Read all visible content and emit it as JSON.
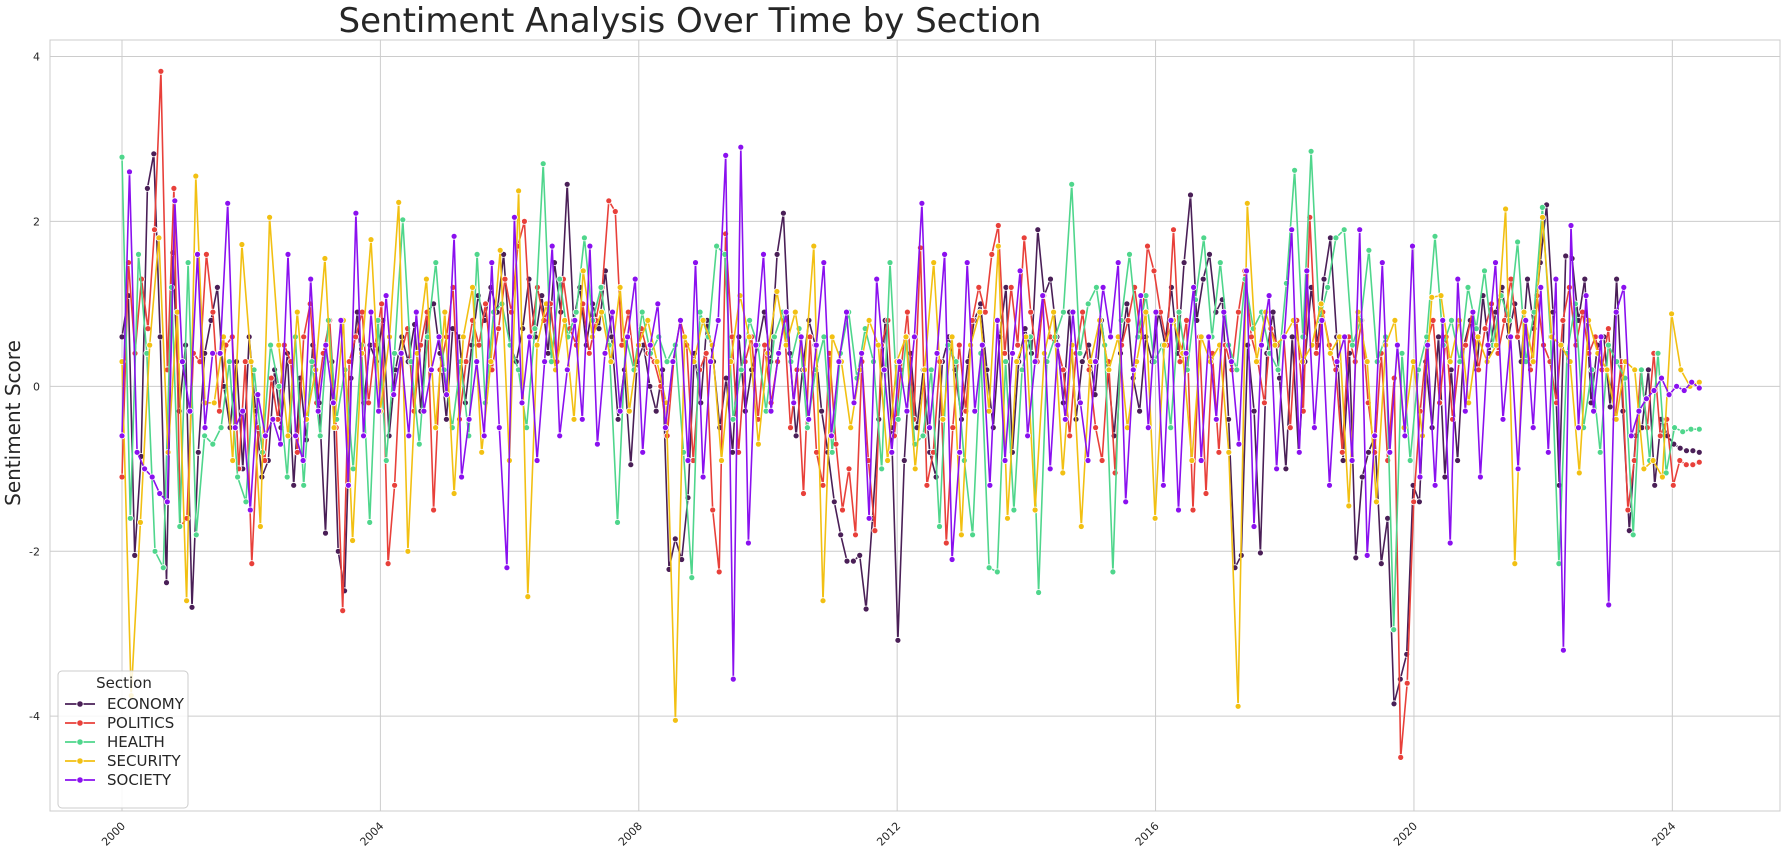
{
  "chart_data": {
    "type": "line",
    "title": "Sentiment Analysis Over Time by Section",
    "xlabel": "",
    "ylabel": "Sentiment Score",
    "x_ticks": [
      "2000",
      "2004",
      "2008",
      "2012",
      "2016",
      "2020",
      "2024"
    ],
    "y_ticks": [
      "-4",
      "-2",
      "0",
      "2",
      "4"
    ],
    "xlim": [
      "1998-11-20",
      "2025-09-01"
    ],
    "ylim": [
      -5.15,
      4.2
    ],
    "grid": true,
    "legend": {
      "title": "Section",
      "placement": "lower-left"
    },
    "x_start": "2000-01",
    "x_end": "2024-06",
    "x_step": "1 month",
    "series": [
      {
        "name": "ECONOMY",
        "color": "#4a1f57",
        "values": [
          0.6,
          1.1,
          -2.05,
          -0.85,
          2.4,
          2.82,
          0.6,
          -2.38,
          1.62,
          -0.3,
          0.5,
          -2.68,
          -0.8,
          0.4,
          0.8,
          1.2,
          0.0,
          -0.5,
          0.3,
          -1.0,
          0.6,
          -0.3,
          -1.1,
          -0.9,
          0.2,
          -0.5,
          0.4,
          -1.2,
          0.1,
          -0.65,
          0.5,
          -0.2,
          -1.78,
          0.3,
          -2.0,
          -2.48,
          0.1,
          0.9,
          -0.2,
          0.5,
          0.3,
          0.8,
          -0.6,
          0.2,
          0.6,
          0.3,
          0.75,
          -0.3,
          0.9,
          1.0,
          0.4,
          -0.4,
          0.7,
          0.6,
          -0.2,
          0.5,
          1.1,
          0.8,
          1.2,
          0.9,
          1.6,
          0.5,
          0.3,
          0.7,
          1.3,
          0.6,
          1.1,
          0.4,
          1.5,
          0.9,
          2.45,
          0.8,
          1.2,
          0.5,
          1.0,
          0.7,
          1.4,
          0.6,
          -0.4,
          0.2,
          -0.95,
          0.3,
          0.5,
          0.0,
          -0.3,
          0.2,
          -2.22,
          -1.85,
          -2.1,
          -1.35,
          0.4,
          -0.2,
          0.8,
          0.3,
          -0.5,
          0.1,
          -0.8,
          0.6,
          -0.3,
          0.2,
          0.5,
          0.9,
          0.3,
          1.6,
          2.1,
          0.4,
          -0.6,
          0.2,
          0.8,
          0.5,
          -0.3,
          -0.8,
          -1.4,
          -1.8,
          -2.12,
          -2.12,
          -2.05,
          -2.7,
          -1.6,
          -0.4,
          0.8,
          -0.5,
          -3.08,
          -0.9,
          0.4,
          -0.5,
          0.2,
          -0.8,
          -1.1,
          0.3,
          0.6,
          0.2,
          -0.4,
          0.3,
          0.8,
          1.0,
          0.2,
          -0.5,
          0.6,
          1.2,
          -0.8,
          0.3,
          0.7,
          0.4,
          1.9,
          1.1,
          1.3,
          0.6,
          -0.2,
          0.9,
          -0.4,
          0.3,
          0.5,
          -0.1,
          0.8,
          0.2,
          -0.6,
          0.4,
          1.0,
          0.1,
          -0.3,
          0.6,
          0.3,
          0.9,
          0.5,
          1.2,
          0.4,
          1.5,
          2.32,
          0.8,
          1.3,
          1.6,
          0.9,
          1.05,
          -0.4,
          -2.2,
          -2.05,
          0.5,
          -0.3,
          -2.02,
          0.4,
          0.9,
          0.1,
          -1.0,
          0.6,
          -0.8,
          0.3,
          1.2,
          0.5,
          1.3,
          1.8,
          0.6,
          -0.9,
          0.4,
          -2.08,
          -1.1,
          -0.8,
          -0.6,
          -2.15,
          -1.6,
          -3.85,
          -3.55,
          -3.25,
          -1.2,
          -1.4,
          0.3,
          -0.5,
          0.6,
          -1.1,
          0.2,
          -0.9,
          0.5,
          0.8,
          0.2,
          1.1,
          0.4,
          0.9,
          1.2,
          0.6,
          1.0,
          0.3,
          1.3,
          0.7,
          1.5,
          2.2,
          0.9,
          -1.2,
          1.58,
          1.55,
          0.8,
          1.3,
          -0.2,
          0.5,
          0.6,
          -0.25,
          1.3,
          -0.3,
          -1.75,
          -0.6,
          -0.5,
          0.2,
          -1.2,
          -0.4,
          -0.6,
          -0.7,
          -0.75,
          -0.78,
          -0.78,
          -0.8
        ]
      },
      {
        "name": "POLITICS",
        "color": "#e8403a",
        "values": [
          -1.1,
          1.5,
          0.4,
          1.3,
          0.7,
          1.9,
          3.82,
          0.2,
          2.4,
          -1.7,
          -1.6,
          0.4,
          0.3,
          1.6,
          0.9,
          -0.3,
          0.5,
          0.6,
          -1.0,
          0.3,
          -2.15,
          -0.5,
          -0.9,
          0.1,
          -0.4,
          0.5,
          0.3,
          -0.8,
          0.6,
          1.0,
          -0.2,
          0.4,
          0.8,
          -0.5,
          -2.72,
          0.3,
          0.6,
          0.9,
          -0.2,
          0.5,
          1.0,
          -2.15,
          -1.2,
          0.4,
          0.7,
          -0.3,
          0.5,
          0.9,
          -1.5,
          0.2,
          0.6,
          1.2,
          -0.4,
          0.3,
          0.8,
          0.5,
          1.0,
          0.2,
          0.7,
          1.3,
          0.9,
          1.7,
          2.0,
          0.6,
          1.2,
          0.8,
          1.0,
          0.3,
          1.3,
          0.7,
          0.5,
          1.0,
          0.4,
          0.8,
          1.2,
          2.25,
          2.12,
          0.5,
          0.9,
          0.2,
          0.7,
          0.4,
          0.3,
          0.0,
          -0.6,
          0.3,
          0.8,
          0.5,
          -0.9,
          0.2,
          0.4,
          -1.5,
          -2.25,
          1.85,
          0.6,
          -0.8,
          0.3,
          0.6,
          -0.4,
          0.5,
          -0.2,
          0.3,
          0.8,
          -0.5,
          0.2,
          -1.3,
          0.6,
          -0.8,
          -1.2,
          0.4,
          -0.7,
          -1.5,
          -1.0,
          -1.8,
          0.3,
          -0.9,
          -1.75,
          0.5,
          0.8,
          -0.6,
          0.2,
          0.9,
          -0.4,
          1.68,
          -1.2,
          -0.8,
          0.3,
          -1.9,
          -0.5,
          0.5,
          -0.3,
          0.8,
          1.2,
          0.9,
          1.6,
          1.95,
          0.4,
          1.2,
          0.5,
          1.8,
          0.9,
          0.3,
          1.1,
          0.6,
          0.5,
          0.2,
          -0.6,
          0.4,
          0.9,
          0.2,
          -0.5,
          -0.9,
          0.3,
          -1.05,
          0.5,
          0.8,
          1.2,
          0.6,
          1.7,
          1.4,
          0.9,
          0.5,
          1.9,
          0.3,
          0.8,
          -1.5,
          0.6,
          -1.3,
          0.4,
          -0.8,
          0.5,
          0.2,
          0.9,
          1.4,
          0.6,
          0.3,
          -0.2,
          0.7,
          0.5,
          0.6,
          -0.5,
          0.8,
          -0.3,
          2.05,
          0.4,
          0.9,
          0.5,
          0.2,
          -0.8,
          0.6,
          0.3,
          0.8,
          -0.2,
          -0.8,
          0.4,
          -0.9,
          0.1,
          -4.5,
          -3.6,
          -1.4,
          -0.3,
          0.5,
          0.8,
          -0.2,
          0.6,
          -0.4,
          0.3,
          0.5,
          0.9,
          0.2,
          0.7,
          1.0,
          0.4,
          0.8,
          1.3,
          0.6,
          0.9,
          0.2,
          1.1,
          0.5,
          0.3,
          -0.2,
          0.8,
          1.2,
          0.5,
          0.9,
          0.4,
          0.6,
          0.2,
          0.7,
          -0.4,
          0.3,
          -1.5,
          -0.9,
          0.2,
          -0.5,
          0.4,
          -0.6,
          -0.4,
          -1.2,
          -0.9,
          -0.95,
          -0.95,
          -0.92
        ]
      },
      {
        "name": "HEALTH",
        "color": "#4fd68c",
        "values": [
          2.78,
          -1.6,
          1.6,
          0.4,
          -2.0,
          -2.2,
          1.2,
          -1.7,
          1.5,
          -1.8,
          -0.6,
          -0.7,
          -0.5,
          0.3,
          -1.1,
          -1.4,
          0.2,
          -0.8,
          0.5,
          0.0,
          -1.1,
          0.6,
          -1.2,
          0.3,
          -0.6,
          0.8,
          -0.4,
          0.2,
          -1.0,
          0.5,
          -1.65,
          0.8,
          -0.9,
          0.4,
          2.02,
          0.3,
          -0.7,
          0.6,
          1.5,
          0.2,
          -0.5,
          0.3,
          -0.6,
          1.6,
          -0.2,
          0.9,
          1.0,
          0.5,
          0.2,
          -0.5,
          0.7,
          2.7,
          0.3,
          1.3,
          0.6,
          0.9,
          1.8,
          0.8,
          1.2,
          0.5,
          -1.65,
          0.6,
          0.2,
          0.9,
          0.4,
          0.6,
          0.3,
          0.5,
          -0.8,
          -2.32,
          0.9,
          0.6,
          1.7,
          1.6,
          -0.4,
          0.2,
          0.8,
          0.5,
          -0.3,
          0.6,
          0.9,
          0.3,
          0.7,
          -0.5,
          0.2,
          0.6,
          -0.8,
          0.4,
          0.9,
          0.1,
          0.7,
          0.3,
          -1.0,
          1.5,
          -0.4,
          0.6,
          -0.7,
          -0.6,
          0.2,
          -1.7,
          0.5,
          0.3,
          -0.9,
          -1.8,
          0.4,
          -2.2,
          -2.25,
          0.3,
          -1.5,
          0.2,
          0.6,
          -2.5,
          0.3,
          0.6,
          0.9,
          2.45,
          0.4,
          1.0,
          1.2,
          0.5,
          -2.25,
          0.8,
          1.6,
          0.6,
          1.1,
          0.3,
          0.5,
          -0.5,
          0.9,
          0.2,
          1.05,
          1.8,
          0.6,
          1.5,
          0.5,
          0.2,
          1.3,
          0.7,
          0.9,
          0.4,
          0.2,
          1.25,
          2.62,
          0.6,
          2.85,
          0.8,
          1.2,
          1.8,
          1.9,
          0.5,
          0.8,
          1.65,
          0.3,
          0.6,
          -2.95,
          0.4,
          -0.9,
          0.2,
          0.6,
          1.82,
          0.5,
          0.8,
          0.3,
          1.2,
          0.7,
          1.4,
          0.5,
          1.1,
          0.8,
          1.75,
          0.3,
          0.9,
          2.17,
          0.6,
          -2.15,
          0.4,
          1.0,
          -0.5,
          0.2,
          -0.8,
          0.5,
          0.3,
          0.1,
          -1.8,
          0.2,
          -0.9,
          0.4,
          -1.05,
          -0.5,
          -0.55,
          -0.52,
          -0.52
        ]
      },
      {
        "name": "SECURITY",
        "color": "#f2c012",
        "values": [
          0.3,
          -3.75,
          -1.65,
          0.5,
          1.8,
          -0.8,
          0.9,
          -2.6,
          2.55,
          -0.2,
          -0.2,
          0.6,
          -0.9,
          1.72,
          0.3,
          -1.7,
          2.05,
          0.5,
          -0.6,
          0.9,
          -0.4,
          0.2,
          1.55,
          -0.5,
          0.8,
          -1.87,
          0.4,
          1.78,
          -0.3,
          0.6,
          2.23,
          -2.0,
          0.4,
          1.3,
          -0.5,
          0.9,
          -1.3,
          0.6,
          1.2,
          -0.8,
          0.3,
          1.65,
          -0.9,
          2.37,
          -2.55,
          0.5,
          1.0,
          0.2,
          0.8,
          -0.4,
          1.4,
          0.6,
          0.9,
          0.3,
          1.2,
          -0.3,
          0.5,
          0.8,
          0.3,
          -0.2,
          -4.05,
          0.6,
          0.3,
          0.8,
          0.5,
          -0.9,
          0.3,
          1.1,
          0.6,
          -0.7,
          0.4,
          1.15,
          0.5,
          0.9,
          0.2,
          1.7,
          -2.6,
          0.6,
          0.3,
          -0.5,
          0.2,
          0.8,
          0.5,
          -0.9,
          0.3,
          0.6,
          -1.0,
          0.2,
          1.5,
          -0.4,
          0.6,
          -1.8,
          0.5,
          0.9,
          -0.3,
          1.7,
          -1.6,
          0.3,
          0.6,
          -1.5,
          0.4,
          0.9,
          -1.05,
          0.5,
          -1.7,
          0.3,
          0.8,
          0.2,
          0.6,
          -0.5,
          0.3,
          0.9,
          -1.6,
          0.5,
          0.8,
          0.4,
          -0.9,
          0.6,
          0.3,
          0.5,
          -0.8,
          -3.88,
          2.22,
          0.3,
          0.9,
          0.5,
          0.6,
          0.8,
          0.3,
          0.5,
          1.0,
          0.4,
          0.6,
          -1.45,
          0.9,
          0.3,
          -1.4,
          0.5,
          0.8,
          -0.5,
          0.3,
          -0.6,
          1.08,
          1.1,
          0.3,
          0.8,
          -0.2,
          0.6,
          0.3,
          0.5,
          2.15,
          -2.15,
          0.9,
          0.3,
          2.05,
          0.6,
          0.5,
          0.3,
          -1.05,
          0.8,
          0.4,
          0.2,
          -0.4,
          0.3,
          0.2,
          -1.0,
          -0.9,
          -1.1,
          0.88,
          0.2,
          0.0,
          0.05
        ]
      },
      {
        "name": "SOCIETY",
        "color": "#8a10ef",
        "values": [
          -0.6,
          2.6,
          -0.8,
          -1.0,
          -1.1,
          -1.3,
          -1.4,
          2.25,
          0.3,
          -0.3,
          1.6,
          -0.5,
          0.4,
          0.4,
          2.22,
          -0.5,
          -0.3,
          -1.5,
          -0.1,
          -0.6,
          -0.4,
          -0.7,
          1.6,
          -0.6,
          -0.9,
          1.3,
          -0.3,
          0.5,
          -0.2,
          0.8,
          -1.2,
          2.1,
          -0.6,
          0.9,
          -0.3,
          1.1,
          -0.1,
          0.4,
          -0.6,
          0.9,
          -0.3,
          0.2,
          0.6,
          -0.1,
          1.82,
          -1.1,
          -0.4,
          0.3,
          -0.6,
          1.5,
          -0.5,
          -2.2,
          2.05,
          -0.2,
          0.6,
          -0.9,
          0.3,
          1.7,
          -0.6,
          0.2,
          0.8,
          -0.4,
          1.7,
          -0.7,
          0.4,
          0.9,
          -0.3,
          0.6,
          1.3,
          -0.8,
          0.5,
          1.0,
          -0.5,
          0.3,
          0.8,
          -0.9,
          1.5,
          -1.1,
          0.3,
          0.8,
          2.8,
          -3.55,
          2.9,
          -1.9,
          0.5,
          1.6,
          -0.3,
          0.4,
          0.9,
          -0.2,
          0.6,
          -0.4,
          0.5,
          1.5,
          -0.6,
          0.3,
          0.9,
          -0.2,
          0.4,
          -1.6,
          1.3,
          0.2,
          -0.8,
          0.3,
          -0.3,
          0.6,
          2.22,
          -0.5,
          0.4,
          1.6,
          -2.1,
          -0.8,
          1.5,
          -0.3,
          0.5,
          -1.2,
          0.8,
          -0.9,
          0.4,
          1.4,
          -0.6,
          0.3,
          1.1,
          -1.0,
          0.5,
          -0.4,
          0.9,
          -0.2,
          -0.9,
          0.3,
          1.2,
          0.6,
          1.5,
          -1.4,
          0.2,
          1.1,
          -0.5,
          0.9,
          -1.2,
          0.8,
          -1.5,
          0.4,
          1.2,
          -0.9,
          0.6,
          -0.4,
          0.9,
          0.3,
          -0.7,
          1.4,
          -1.7,
          0.5,
          1.1,
          -1.0,
          0.6,
          1.9,
          -0.8,
          1.4,
          -0.5,
          0.8,
          -1.2,
          0.3,
          0.6,
          -0.9,
          1.9,
          -2.05,
          -0.6,
          1.5,
          -0.8,
          0.5,
          -0.6,
          1.7,
          -1.1,
          0.5,
          -1.2,
          0.8,
          -1.9,
          1.3,
          -0.3,
          0.9,
          -1.1,
          0.5,
          1.5,
          -0.4,
          0.6,
          -1.0,
          0.8,
          -0.5,
          1.2,
          -0.8,
          1.3,
          -3.2,
          1.95,
          -0.5,
          1.1,
          -0.3,
          0.6,
          -2.65,
          0.9,
          1.2,
          -0.6,
          -0.3,
          -0.15,
          -0.05,
          0.1,
          -0.1,
          0.0,
          -0.05,
          0.05,
          -0.02
        ]
      }
    ]
  }
}
